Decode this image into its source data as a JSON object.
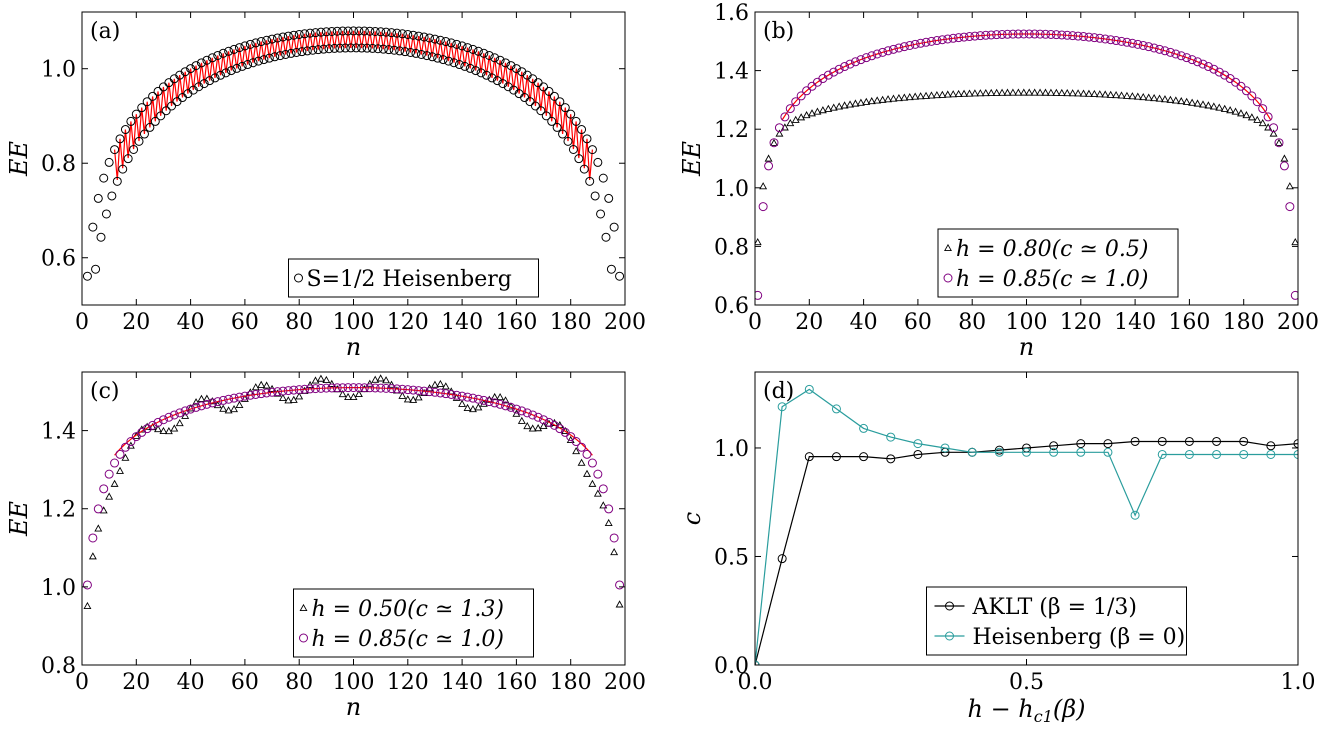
{
  "chart_data": [
    {
      "type": "scatter",
      "panel_label": "(a)",
      "xlabel": "n",
      "ylabel": "EE",
      "xlim": [
        0,
        200
      ],
      "ylim": [
        0.5,
        1.12
      ],
      "xticks": [
        0,
        20,
        40,
        60,
        80,
        100,
        120,
        140,
        160,
        180,
        200
      ],
      "xtick_labels": [
        "0",
        "20",
        "40",
        "60",
        "80",
        "100",
        "120",
        "140",
        "160",
        "180",
        "200"
      ],
      "yticks": [
        0.6,
        0.8,
        1.0
      ],
      "ytick_labels": [
        "0.6",
        "0.8",
        "1.0"
      ],
      "legend_position": "bottom-center",
      "series": [
        {
          "name": "S=1/2 Heisenberg",
          "marker": "circle",
          "color": "#000000",
          "fit_color": "#ff0000",
          "fit_range": [
            12,
            188
          ],
          "even_base": [
            0.7,
            1.0,
            1.08
          ],
          "odd_base": [
            0.56,
            1.0,
            1.044
          ],
          "description_points_step": 2
        }
      ]
    },
    {
      "type": "scatter",
      "panel_label": "(b)",
      "xlabel": "n",
      "ylabel": "EE",
      "xlim": [
        0,
        200
      ],
      "ylim": [
        0.6,
        1.6
      ],
      "xticks": [
        0,
        20,
        40,
        60,
        80,
        100,
        120,
        140,
        160,
        180,
        200
      ],
      "xtick_labels": [
        "0",
        "20",
        "40",
        "60",
        "80",
        "100",
        "120",
        "140",
        "160",
        "180",
        "200"
      ],
      "yticks": [
        0.6,
        0.8,
        1.0,
        1.2,
        1.4,
        1.6
      ],
      "ytick_labels": [
        "0.6",
        "0.8",
        "1.0",
        "1.2",
        "1.4",
        "1.6"
      ],
      "legend_position": "bottom-right",
      "series": [
        {
          "name": "h = 0.80(c ≃ 0.5)",
          "marker": "triangle",
          "color": "#000000",
          "plateau": 1.325,
          "c": 0.5
        },
        {
          "name": "h = 0.85(c ≃ 1.0)",
          "marker": "circle",
          "color": "#800080",
          "plateau": 1.525,
          "c": 1.0,
          "fit_color": "#ff0000"
        }
      ]
    },
    {
      "type": "scatter",
      "panel_label": "(c)",
      "xlabel": "n",
      "ylabel": "EE",
      "xlim": [
        0,
        200
      ],
      "ylim": [
        0.8,
        1.55
      ],
      "xticks": [
        0,
        20,
        40,
        60,
        80,
        100,
        120,
        140,
        160,
        180,
        200
      ],
      "xtick_labels": [
        "0",
        "20",
        "40",
        "60",
        "80",
        "100",
        "120",
        "140",
        "160",
        "180",
        "200"
      ],
      "yticks": [
        0.8,
        1.0,
        1.2,
        1.4
      ],
      "ytick_labels": [
        "0.8",
        "1.0",
        "1.2",
        "1.4"
      ],
      "legend_position": "bottom-center",
      "series": [
        {
          "name": "h = 0.50(c ≃ 1.3)",
          "marker": "triangle",
          "color": "#000000",
          "plateau": 1.51,
          "c": 1.3
        },
        {
          "name": "h = 0.85(c ≃ 1.0)",
          "marker": "circle",
          "color": "#800080",
          "plateau": 1.51,
          "c": 1.0,
          "fit_color": "#ff0000"
        }
      ]
    },
    {
      "type": "line",
      "panel_label": "(d)",
      "xlabel": "h − h_c1(β)",
      "ylabel": "c",
      "xlim": [
        0,
        1.0
      ],
      "ylim": [
        0,
        1.35
      ],
      "xticks": [
        0,
        0.5,
        1.0
      ],
      "xtick_labels": [
        "0.0",
        "0.5",
        "1.0"
      ],
      "yticks": [
        0,
        0.5,
        1.0
      ],
      "ytick_labels": [
        "0.0",
        "0.5",
        "1.0"
      ],
      "legend_position": "bottom-center",
      "series": [
        {
          "name": "AKLT (β = 1/3)",
          "color": "#000000",
          "x": [
            0.0,
            0.05,
            0.1,
            0.15,
            0.2,
            0.25,
            0.3,
            0.35,
            0.4,
            0.45,
            0.5,
            0.55,
            0.6,
            0.65,
            0.7,
            0.75,
            0.8,
            0.85,
            0.9,
            0.95,
            1.0
          ],
          "y": [
            0.0,
            0.49,
            0.96,
            0.96,
            0.96,
            0.95,
            0.97,
            0.98,
            0.98,
            0.99,
            1.0,
            1.01,
            1.02,
            1.02,
            1.03,
            1.03,
            1.03,
            1.03,
            1.03,
            1.01,
            1.02
          ]
        },
        {
          "name": "Heisenberg (β = 0)",
          "color": "#2a9d9d",
          "x": [
            0.0,
            0.05,
            0.1,
            0.15,
            0.2,
            0.25,
            0.3,
            0.35,
            0.4,
            0.45,
            0.5,
            0.55,
            0.6,
            0.65,
            0.7,
            0.75,
            0.8,
            0.85,
            0.9,
            0.95,
            1.0
          ],
          "y": [
            0.0,
            1.19,
            1.27,
            1.18,
            1.09,
            1.05,
            1.02,
            1.0,
            0.98,
            0.98,
            0.98,
            0.98,
            0.98,
            0.98,
            0.69,
            0.97,
            0.97,
            0.97,
            0.97,
            0.97,
            0.97
          ]
        }
      ]
    }
  ]
}
